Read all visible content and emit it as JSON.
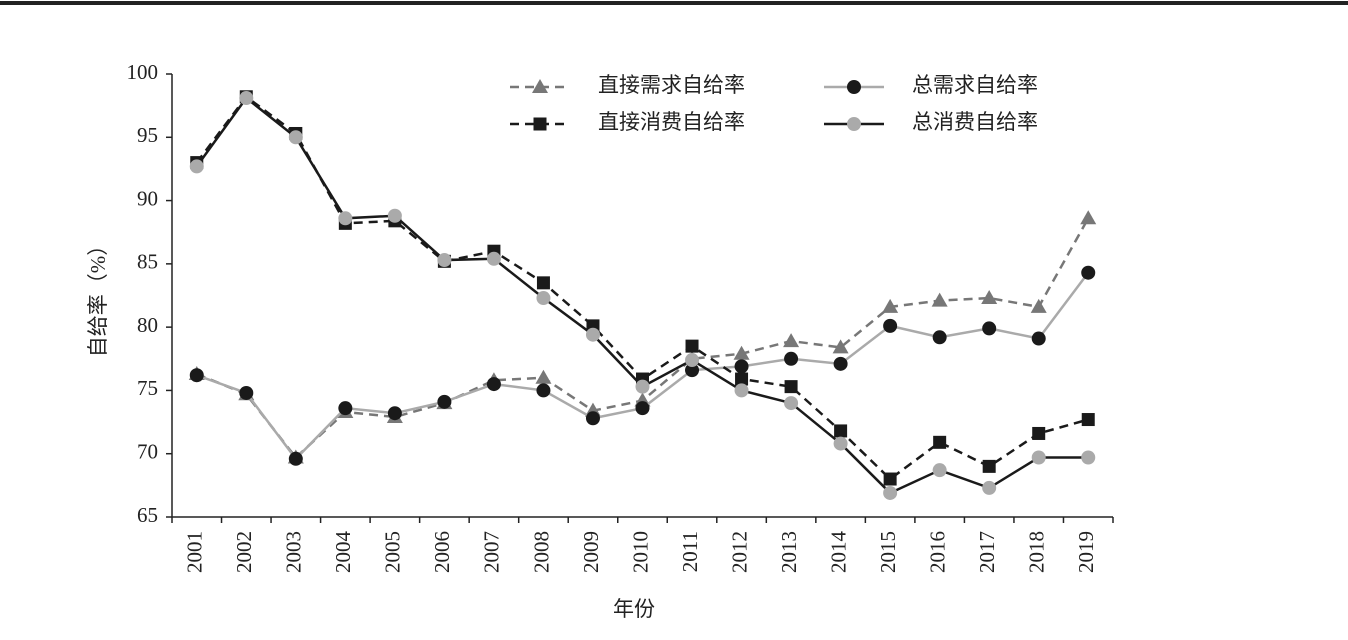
{
  "chart_data": {
    "type": "line",
    "x_label": "年份",
    "y_label": "自给率（%）",
    "categories": [
      "2001",
      "2002",
      "2003",
      "2004",
      "2005",
      "2006",
      "2007",
      "2008",
      "2009",
      "2010",
      "2011",
      "2012",
      "2013",
      "2014",
      "2015",
      "2016",
      "2017",
      "2018",
      "2019"
    ],
    "series": [
      {
        "name": "直接需求自给率",
        "color": "#777777",
        "marker_color": "#777777",
        "marker": "triangle",
        "dashed": true,
        "values": [
          76.3,
          74.7,
          69.7,
          73.3,
          72.9,
          74.0,
          75.8,
          76.0,
          73.4,
          74.2,
          77.5,
          77.9,
          78.9,
          78.4,
          81.6,
          82.1,
          82.3,
          81.6,
          88.6
        ]
      },
      {
        "name": "总需求自给率",
        "color": "#aaaaaa",
        "marker_color": "#1a1a1a",
        "marker": "circle",
        "dashed": false,
        "values": [
          76.2,
          74.8,
          69.6,
          73.6,
          73.2,
          74.1,
          75.5,
          75.0,
          72.8,
          73.6,
          76.6,
          76.9,
          77.5,
          77.1,
          80.1,
          79.2,
          79.9,
          79.1,
          84.3
        ]
      },
      {
        "name": "直接消费自给率",
        "color": "#1a1a1a",
        "marker_color": "#1a1a1a",
        "marker": "square",
        "dashed": true,
        "values": [
          93.0,
          98.2,
          95.3,
          88.2,
          88.4,
          85.2,
          86.0,
          83.5,
          80.1,
          75.9,
          78.5,
          75.9,
          75.3,
          71.8,
          68.0,
          70.9,
          69.0,
          71.6,
          72.7
        ]
      },
      {
        "name": "总消费自给率",
        "color": "#1a1a1a",
        "marker_color": "#aaaaaa",
        "marker": "circle",
        "dashed": false,
        "values": [
          92.7,
          98.1,
          95.0,
          88.6,
          88.8,
          85.3,
          85.4,
          82.3,
          79.4,
          75.3,
          77.4,
          75.0,
          74.0,
          70.8,
          66.9,
          68.7,
          67.3,
          69.7,
          69.7
        ]
      }
    ],
    "ylim": [
      65,
      100
    ],
    "yticks": [
      65,
      70,
      75,
      80,
      85,
      90,
      95,
      100
    ],
    "grid": false
  }
}
